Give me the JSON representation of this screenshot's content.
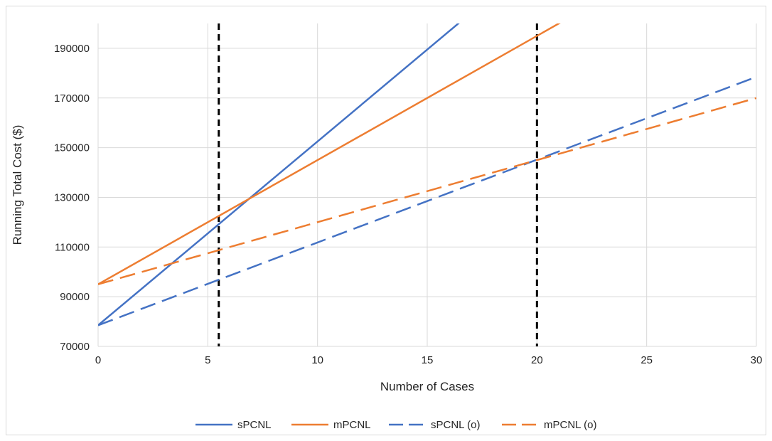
{
  "chart_data": {
    "type": "line",
    "title": "",
    "xlabel": "Number of Cases",
    "ylabel": "Running Total Cost ($)",
    "xlim": [
      0,
      30
    ],
    "ylim": [
      70000,
      200000
    ],
    "x_ticks": [
      0,
      5,
      10,
      15,
      20,
      25,
      30
    ],
    "y_ticks": [
      70000,
      90000,
      110000,
      130000,
      150000,
      170000,
      190000
    ],
    "grid": true,
    "legend_position": "bottom",
    "series": [
      {
        "name": "sPCNL",
        "color": "#4472c4",
        "dashed": false,
        "x": [
          0,
          30
        ],
        "y": [
          78500,
          300500
        ]
      },
      {
        "name": "mPCNL",
        "color": "#ed7d31",
        "dashed": false,
        "x": [
          0,
          30
        ],
        "y": [
          95000,
          245000
        ]
      },
      {
        "name": "sPCNL (o)",
        "color": "#4472c4",
        "dashed": true,
        "x": [
          0,
          30
        ],
        "y": [
          78500,
          178500
        ]
      },
      {
        "name": "mPCNL (o)",
        "color": "#ed7d31",
        "dashed": true,
        "x": [
          0,
          30
        ],
        "y": [
          95000,
          170000
        ]
      }
    ],
    "reference_lines": [
      {
        "x": 5.5,
        "color": "#000000",
        "dashed": true
      },
      {
        "x": 20,
        "color": "#000000",
        "dashed": true
      }
    ]
  }
}
